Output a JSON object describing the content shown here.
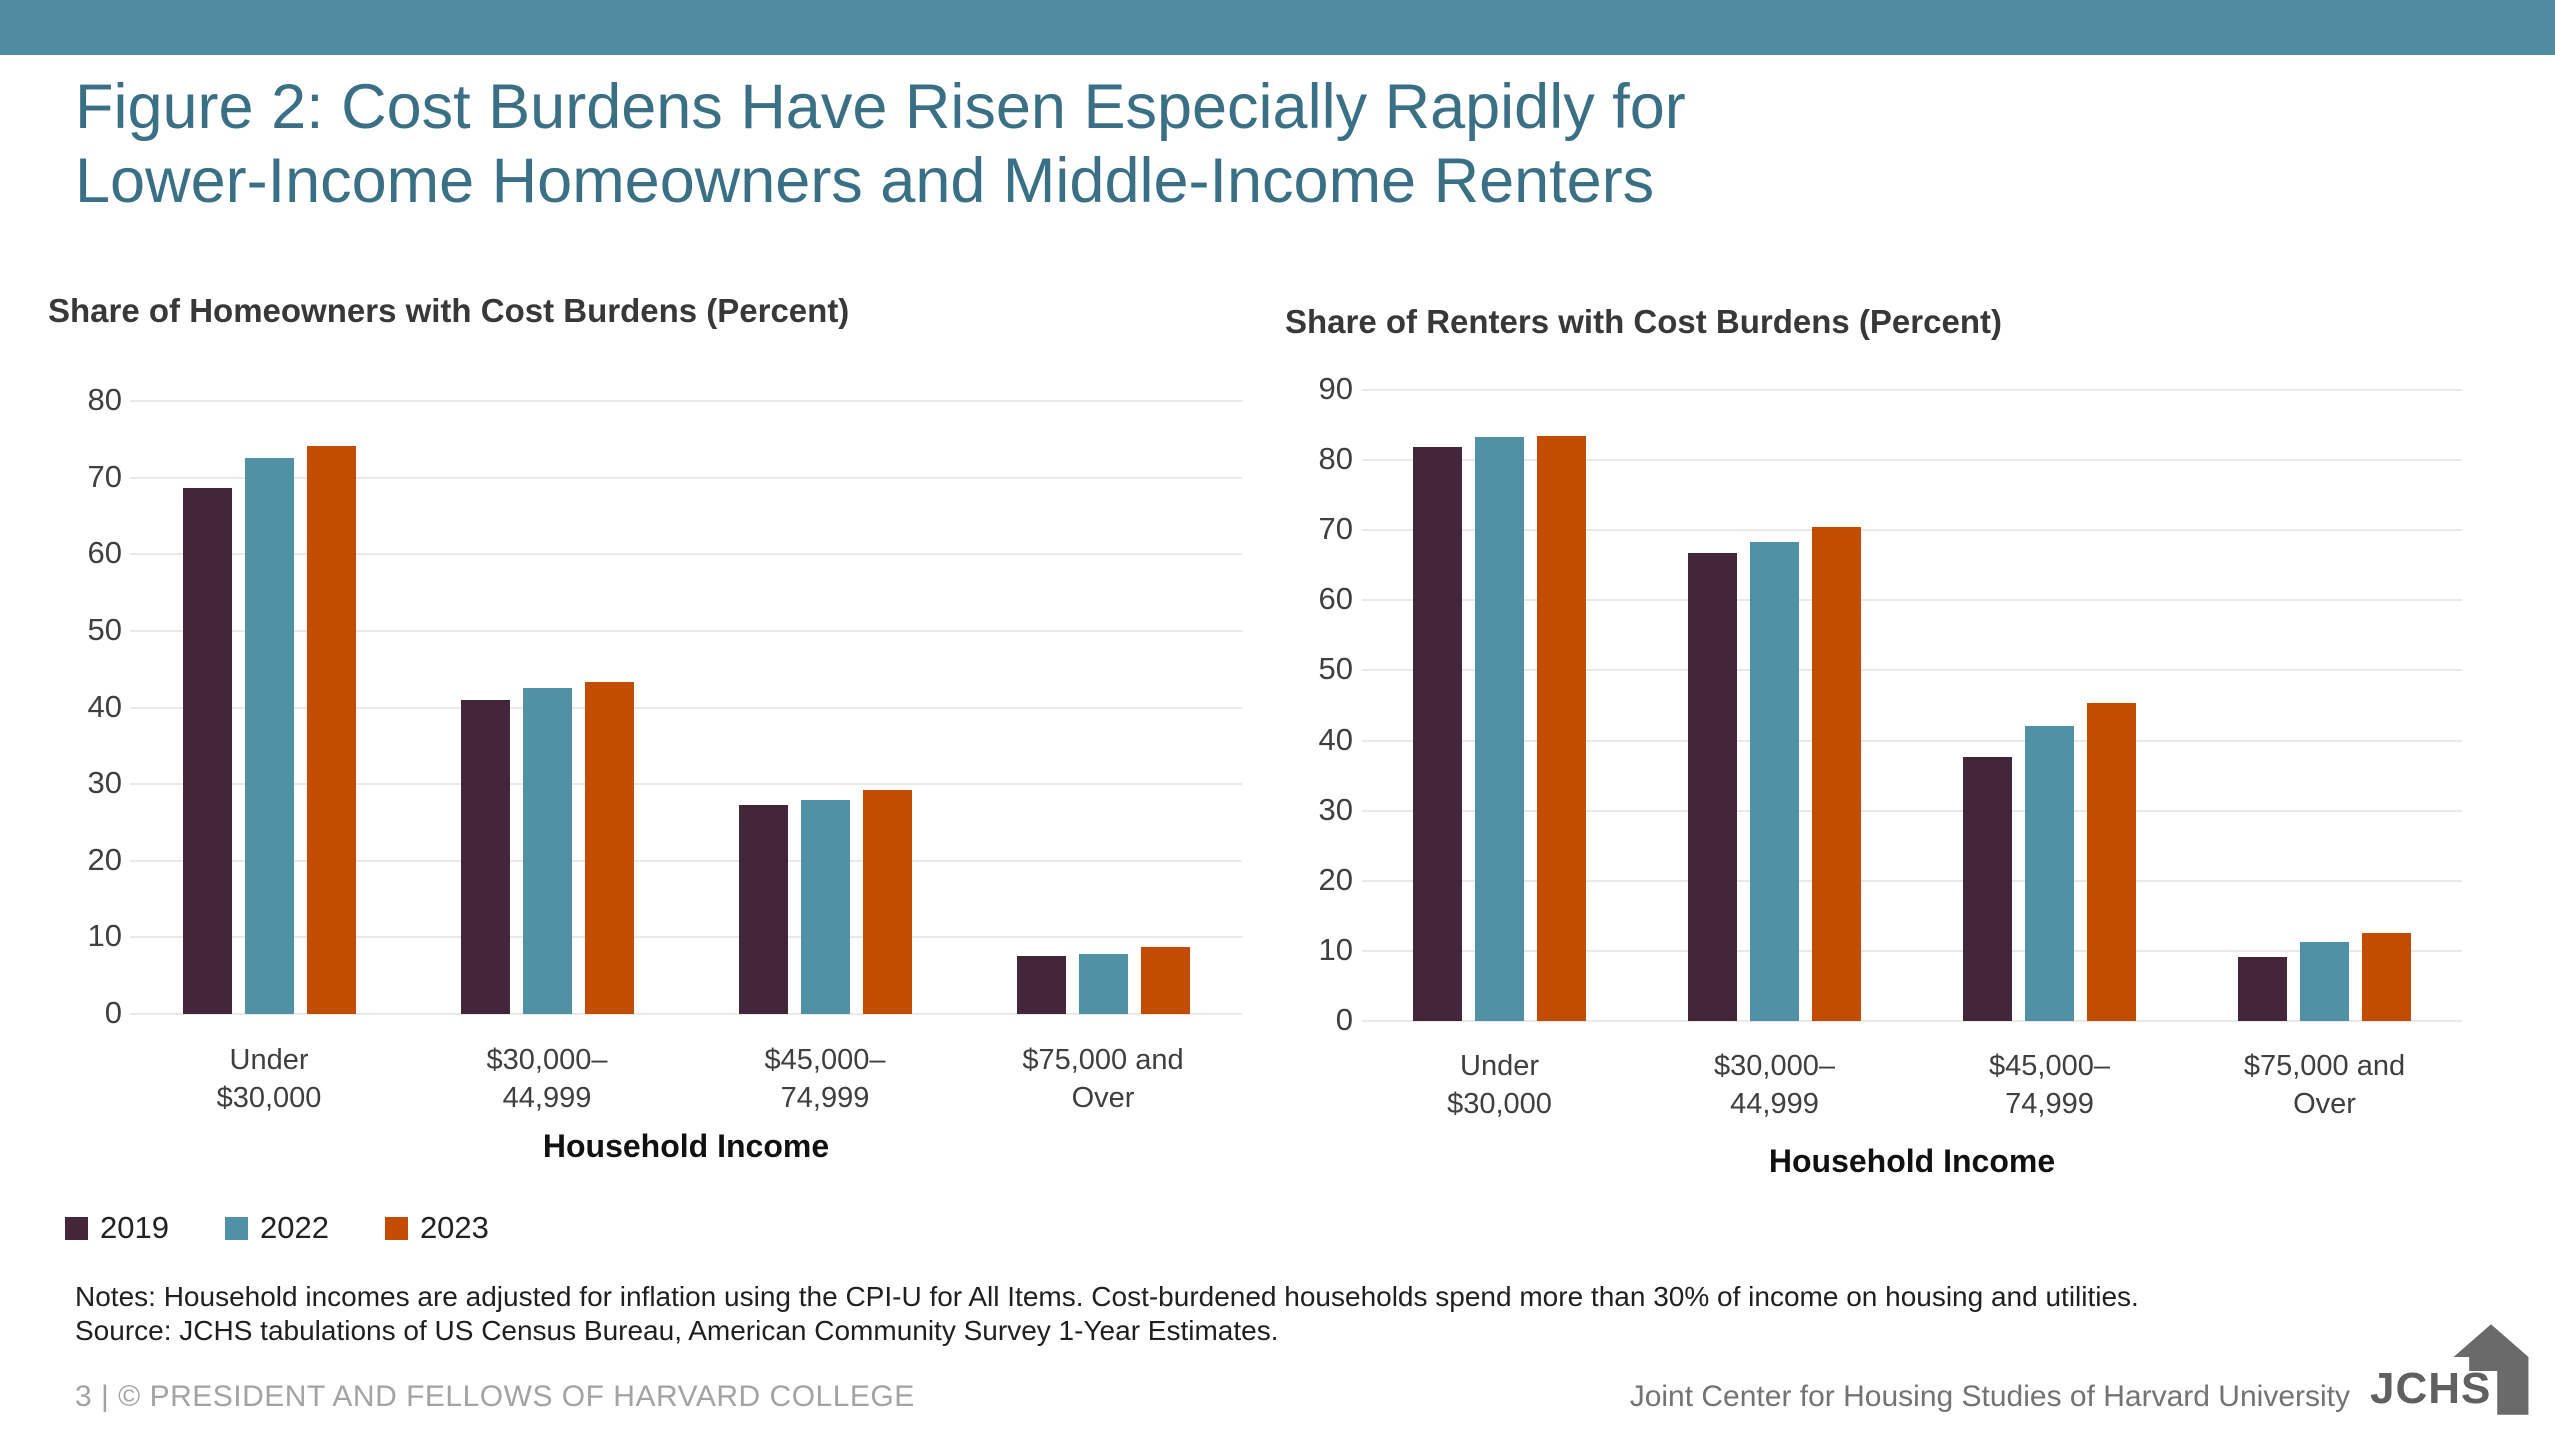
{
  "page": {
    "topbar_color": "#4f8ca1"
  },
  "header": {
    "title_lines": [
      "Figure 2: Cost Burdens Have Risen Especially Rapidly for",
      "Lower-Income Homeowners and Middle-Income Renters"
    ]
  },
  "legend": {
    "items": [
      {
        "label": "2019",
        "color": "#432639"
      },
      {
        "label": "2022",
        "color": "#5191a6"
      },
      {
        "label": "2023",
        "color": "#c24d00"
      }
    ]
  },
  "chart_data": [
    {
      "type": "bar",
      "title": "Share of Homeowners with Cost Burdens (Percent)",
      "xlabel": "Household Income",
      "categories": [
        [
          "Under",
          "$30,000"
        ],
        [
          "$30,000–",
          "44,999"
        ],
        [
          "$45,000–",
          "74,999"
        ],
        [
          "$75,000 and",
          "Over"
        ]
      ],
      "series": [
        {
          "name": "2019",
          "color": "#432639",
          "values": [
            68.7,
            41.0,
            27.3,
            7.6
          ]
        },
        {
          "name": "2022",
          "color": "#5191a6",
          "values": [
            72.6,
            42.6,
            27.9,
            7.8
          ]
        },
        {
          "name": "2023",
          "color": "#c24d00",
          "values": [
            74.1,
            43.3,
            29.2,
            8.7
          ]
        }
      ],
      "ylim": [
        0,
        80
      ],
      "ytick_step": 10,
      "grid": true,
      "legend_position": "bottom-left"
    },
    {
      "type": "bar",
      "title": "Share of Renters with Cost Burdens (Percent)",
      "xlabel": "Household Income",
      "categories": [
        [
          "Under",
          "$30,000"
        ],
        [
          "$30,000–",
          "44,999"
        ],
        [
          "$45,000–",
          "74,999"
        ],
        [
          "$75,000 and",
          "Over"
        ]
      ],
      "series": [
        {
          "name": "2019",
          "color": "#432639",
          "values": [
            81.9,
            66.7,
            37.6,
            9.2
          ]
        },
        {
          "name": "2022",
          "color": "#5191a6",
          "values": [
            83.3,
            68.3,
            42.1,
            11.2
          ]
        },
        {
          "name": "2023",
          "color": "#c24d00",
          "values": [
            83.4,
            70.4,
            45.3,
            12.6
          ]
        }
      ],
      "ylim": [
        0,
        90
      ],
      "ytick_step": 10,
      "grid": true,
      "legend_position": "bottom-left"
    }
  ],
  "notes": {
    "line1": "Notes: Household incomes are adjusted for inflation using the CPI-U for All Items. Cost-burdened households spend more than 30% of income on housing and utilities.",
    "line2": "Source: JCHS tabulations of US Census Bureau, American Community Survey 1-Year Estimates."
  },
  "footer": {
    "left": "3 | © PRESIDENT AND FELLOWS OF HARVARD COLLEGE",
    "right": "Joint Center for Housing Studies of Harvard University",
    "logo_text": "JCHS"
  }
}
